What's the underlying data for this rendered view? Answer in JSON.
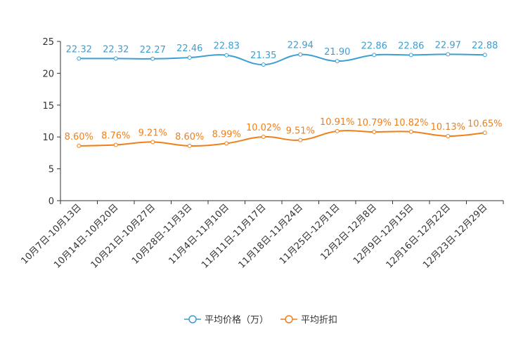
{
  "chart_data": {
    "type": "line",
    "title": "",
    "xlabel": "",
    "ylabel": "",
    "ylim": [
      0,
      25
    ],
    "yticks": [
      0,
      5,
      10,
      15,
      20,
      25
    ],
    "categories": [
      "10月7日-10月13日",
      "10月14日-10月20日",
      "10月21日-10月27日",
      "10月28日-11月3日",
      "11月4日-11月10日",
      "11月11日-11月17日",
      "11月18日-11月24日",
      "11月25日-12月1日",
      "12月2日-12月8日",
      "12月9日-12月15日",
      "12月16日-12月22日",
      "12月23日-12月29日"
    ],
    "series": [
      {
        "name": "平均价格（万）",
        "color": "#3b9fd1",
        "values": [
          22.32,
          22.32,
          22.27,
          22.46,
          22.83,
          21.35,
          22.94,
          21.9,
          22.86,
          22.86,
          22.97,
          22.88
        ],
        "labels": [
          "22.32",
          "22.32",
          "22.27",
          "22.46",
          "22.83",
          "21.35",
          "22.94",
          "21.90",
          "22.86",
          "22.86",
          "22.97",
          "22.88"
        ]
      },
      {
        "name": "平均折扣",
        "color": "#f07f1a",
        "values": [
          8.6,
          8.76,
          9.21,
          8.6,
          8.99,
          10.02,
          9.51,
          10.91,
          10.79,
          10.82,
          10.13,
          10.65
        ],
        "labels": [
          "8.60%",
          "8.76%",
          "9.21%",
          "8.60%",
          "8.99%",
          "10.02%",
          "9.51%",
          "10.91%",
          "10.79%",
          "10.82%",
          "10.13%",
          "10.65%"
        ]
      }
    ],
    "legend_position": "bottom-center",
    "grid": false
  }
}
